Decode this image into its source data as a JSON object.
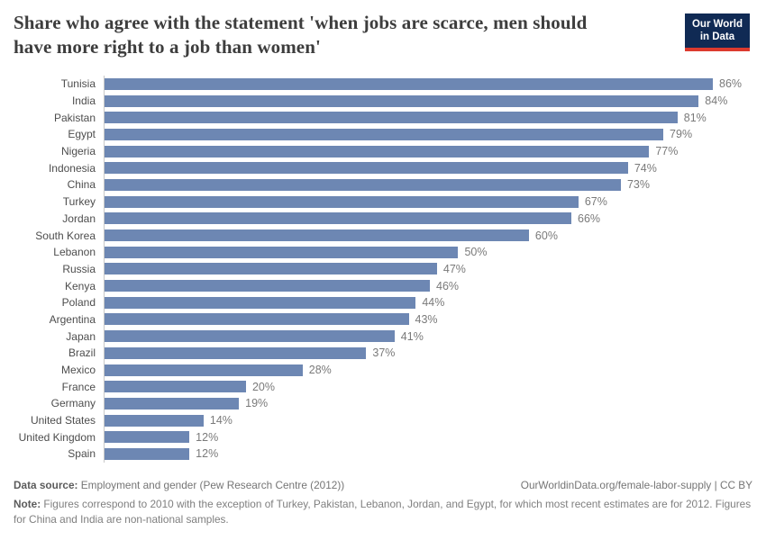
{
  "header": {
    "title_lines": [
      "Share who agree with the statement 'when jobs are scarce, men should",
      "have more right to a job than women'"
    ],
    "logo": {
      "line1": "Our World",
      "line2": "in Data"
    }
  },
  "chart_data": {
    "type": "bar",
    "orientation": "horizontal",
    "title": "Share who agree with the statement 'when jobs are scarce, men should have more right to a job than women'",
    "categories": [
      "Tunisia",
      "India",
      "Pakistan",
      "Egypt",
      "Nigeria",
      "Indonesia",
      "China",
      "Turkey",
      "Jordan",
      "South Korea",
      "Lebanon",
      "Russia",
      "Kenya",
      "Poland",
      "Argentina",
      "Japan",
      "Brazil",
      "Mexico",
      "France",
      "Germany",
      "United States",
      "United Kingdom",
      "Spain"
    ],
    "values": [
      86,
      84,
      81,
      79,
      77,
      74,
      73,
      67,
      66,
      60,
      50,
      47,
      46,
      44,
      43,
      41,
      37,
      28,
      20,
      19,
      14,
      12,
      12
    ],
    "unit": "%",
    "xlim": [
      0,
      100
    ],
    "grid": false,
    "legend": "none",
    "colors": {
      "bar": "#6d87b3",
      "logo_background": "#102a54",
      "logo_accent": "#dc3a2e",
      "title_text": "#3d3d3d",
      "category_label": "#4d4d4d",
      "value_label": "#7a7a7a"
    }
  },
  "footer": {
    "source_label": "Data source:",
    "source_text": " Employment and gender (Pew Research Centre (2012))",
    "link_text": "OurWorldinData.org/female-labor-supply | CC BY",
    "note_label": "Note:",
    "note_text": " Figures correspond to 2010 with the exception of Turkey, Pakistan, Lebanon, Jordan, and Egypt, for which most recent estimates are for 2012. Figures for China and India are non-national samples."
  }
}
